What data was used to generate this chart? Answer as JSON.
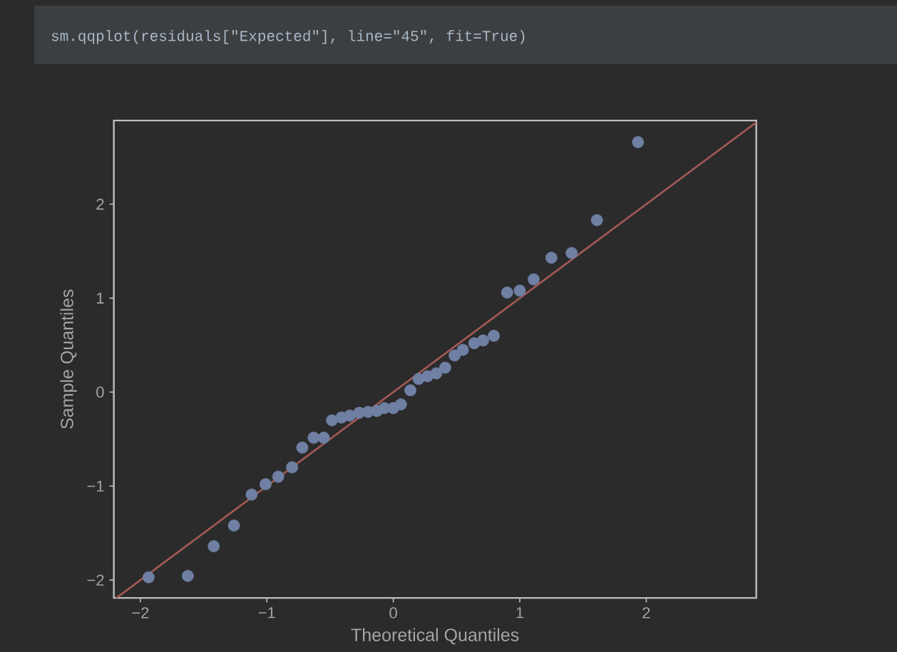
{
  "chart_data": {
    "type": "scatter",
    "xlabel": "Theoretical Quantiles",
    "ylabel": "Sample Quantiles",
    "annotations": [
      "sm.qqplot(residuals[\"Expected\"], line=\"45\", fit=True)"
    ],
    "xlim": [
      -2.21,
      2.87
    ],
    "ylim": [
      -2.19,
      2.89
    ],
    "xticks": [
      {
        "value": -2,
        "label": "−2"
      },
      {
        "value": -1,
        "label": "−1"
      },
      0,
      1,
      2
    ],
    "yticks": [
      {
        "value": -2,
        "label": "−2"
      },
      {
        "value": -1,
        "label": "−1"
      },
      0,
      1,
      2
    ],
    "series": [
      {
        "marker": "circle",
        "color": "#6f80a4",
        "x": [
          -1.935,
          -1.625,
          -1.42,
          -1.26,
          -1.12,
          -1.01,
          -0.91,
          -0.8,
          -0.72,
          -0.63,
          -0.55,
          -0.485,
          -0.41,
          -0.345,
          -0.27,
          -0.2,
          -0.13,
          -0.07,
          0.0,
          0.06,
          0.135,
          0.2,
          0.27,
          0.34,
          0.41,
          0.485,
          0.55,
          0.64,
          0.71,
          0.795,
          0.9,
          1.0,
          1.11,
          1.25,
          1.41,
          1.61,
          1.935
        ],
        "values": [
          -1.97,
          -1.955,
          -1.64,
          -1.42,
          -1.09,
          -0.98,
          -0.9,
          -0.8,
          -0.59,
          -0.485,
          -0.485,
          -0.3,
          -0.27,
          -0.25,
          -0.22,
          -0.21,
          -0.2,
          -0.17,
          -0.17,
          -0.13,
          0.02,
          0.14,
          0.17,
          0.2,
          0.26,
          0.39,
          0.45,
          0.52,
          0.55,
          0.6,
          1.06,
          1.08,
          1.2,
          1.43,
          1.48,
          1.83,
          2.66
        ]
      },
      {
        "type": "line",
        "marker": "none",
        "color": "#a45a58",
        "line_style": "solid",
        "x": [
          -2.19,
          2.87
        ],
        "values": [
          -2.19,
          2.87
        ]
      }
    ]
  }
}
